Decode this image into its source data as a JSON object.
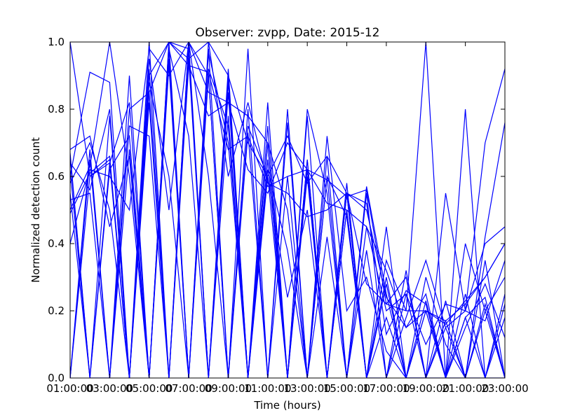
{
  "chart_data": {
    "type": "line",
    "title": "Observer: zvpp, Date: 2015-12",
    "xlabel": "Time (hours)",
    "ylabel": "Normalized detection count",
    "xlim": [
      1,
      23
    ],
    "ylim": [
      0,
      1
    ],
    "x_tick_labels": [
      "01:00:00",
      "03:00:00",
      "05:00:00",
      "07:00:00",
      "09:00:00",
      "11:00:00",
      "13:00:00",
      "15:00:00",
      "17:00:00",
      "19:00:00",
      "21:00:00",
      "23:00:00"
    ],
    "y_tick_labels": [
      "0.0",
      "0.2",
      "0.4",
      "0.6",
      "0.8",
      "1.0"
    ],
    "grid": false,
    "line_color": "#0000ff",
    "x": [
      1,
      2,
      3,
      4,
      5,
      6,
      7,
      8,
      9,
      10,
      11,
      12,
      13,
      14,
      15,
      16,
      17,
      18,
      19,
      20,
      21,
      22,
      23
    ],
    "series": [
      {
        "values": [
          1.0,
          0.6,
          0.64,
          0.0,
          0.9,
          1.0,
          0.95,
          1.0,
          0.9,
          0.7,
          0.6,
          0.72,
          0.58,
          0.66,
          0.55,
          0.5,
          0.24,
          0.15,
          0.2,
          0.17,
          0.22,
          0.3,
          0.4
        ]
      },
      {
        "values": [
          0.66,
          0.0,
          0.62,
          0.72,
          0.0,
          1.0,
          0.98,
          0.0,
          0.85,
          0.0,
          0.7,
          0.0,
          0.65,
          0.0,
          0.5,
          0.0,
          0.28,
          0.0,
          0.2,
          0.0,
          0.18,
          0.0,
          0.25
        ]
      },
      {
        "values": [
          0.0,
          0.65,
          0.0,
          0.8,
          0.85,
          0.0,
          1.0,
          0.9,
          0.0,
          0.8,
          0.0,
          0.76,
          0.0,
          0.6,
          0.0,
          0.55,
          0.0,
          0.25,
          0.0,
          0.15,
          0.0,
          0.35,
          0.0
        ]
      },
      {
        "values": [
          0.4,
          0.62,
          0.6,
          0.5,
          0.98,
          0.9,
          1.0,
          0.85,
          0.82,
          0.62,
          0.55,
          0.7,
          0.62,
          0.52,
          0.5,
          0.45,
          0.2,
          0.25,
          0.1,
          0.22,
          0.2,
          0.4,
          0.45
        ]
      },
      {
        "values": [
          0.6,
          0.91,
          0.88,
          0.0,
          0.95,
          0.5,
          1.0,
          0.6,
          0.0,
          0.75,
          0.6,
          0.0,
          0.8,
          0.55,
          0.0,
          0.57,
          0.25,
          0.0,
          0.3,
          0.1,
          0.0,
          0.2,
          0.0
        ]
      },
      {
        "values": [
          0.5,
          0.63,
          1.0,
          0.6,
          0.0,
          0.95,
          0.0,
          0.97,
          0.7,
          0.0,
          0.62,
          0.38,
          0.0,
          0.6,
          0.48,
          0.0,
          0.35,
          0.2,
          1.0,
          0.0,
          0.15,
          0.28,
          0.12
        ]
      },
      {
        "values": [
          0.68,
          0.72,
          0.45,
          0.66,
          0.0,
          1.0,
          0.0,
          0.9,
          0.0,
          0.98,
          0.0,
          0.8,
          0.0,
          0.72,
          0.2,
          0.3,
          0.08,
          0.0,
          0.0,
          0.55,
          0.2,
          0.7,
          0.92
        ]
      },
      {
        "values": [
          0.67,
          0.0,
          0.78,
          0.0,
          0.92,
          0.0,
          0.98,
          0.0,
          0.92,
          0.0,
          0.65,
          0.0,
          0.6,
          0.0,
          0.55,
          0.0,
          0.3,
          0.0,
          0.23,
          0.0,
          0.25,
          0.0,
          0.22
        ]
      },
      {
        "values": [
          0.53,
          0.55,
          0.0,
          0.9,
          0.0,
          0.98,
          0.72,
          0.0,
          0.9,
          0.0,
          0.82,
          0.0,
          0.62,
          0.0,
          0.5,
          0.0,
          0.45,
          0.0,
          0.2,
          0.0,
          0.8,
          0.0,
          0.18
        ]
      },
      {
        "values": [
          0.58,
          0.7,
          0.5,
          0.0,
          0.88,
          0.6,
          0.0,
          0.92,
          0.75,
          0.0,
          0.7,
          0.0,
          0.78,
          0.0,
          0.55,
          0.28,
          0.22,
          0.3,
          0.0,
          0.23,
          0.0,
          0.42,
          0.76
        ]
      },
      {
        "values": [
          0.62,
          0.0,
          0.0,
          0.75,
          0.72,
          0.0,
          0.95,
          0.0,
          0.78,
          0.0,
          0.75,
          0.0,
          0.65,
          0.0,
          0.58,
          0.0,
          0.18,
          0.0,
          0.0,
          0.0,
          0.0,
          0.0,
          0.0
        ]
      },
      {
        "values": [
          0.0,
          0.6,
          0.65,
          0.0,
          0.82,
          0.0,
          1.0,
          0.0,
          0.88,
          0.0,
          0.6,
          0.24,
          0.5,
          0.0,
          0.55,
          0.0,
          0.0,
          0.18,
          0.35,
          0.15,
          0.2,
          0.17,
          0.35
        ]
      },
      {
        "values": [
          0.49,
          0.61,
          0.66,
          0.0,
          0.85,
          1.0,
          0.93,
          0.91,
          0.68,
          0.72,
          0.57,
          0.6,
          0.62,
          0.59,
          0.54,
          0.56,
          0.22,
          0.2,
          0.2,
          0.16,
          0.23,
          0.3,
          0.4
        ]
      },
      {
        "values": [
          0.64,
          0.56,
          0.8,
          0.0,
          1.0,
          0.0,
          0.93,
          0.78,
          0.82,
          0.78,
          0.7,
          0.5,
          0.0,
          0.66,
          0.0,
          0.45,
          0.32,
          0.15,
          0.25,
          0.0,
          0.4,
          0.2,
          0.3
        ]
      },
      {
        "values": [
          0.55,
          0.0,
          0.64,
          0.82,
          0.0,
          0.93,
          0.0,
          1.0,
          0.6,
          0.82,
          0.58,
          0.55,
          0.48,
          0.5,
          0.55,
          0.52,
          0.13,
          0.26,
          0.22,
          0.0,
          0.18,
          0.24,
          0.0
        ]
      },
      {
        "values": [
          0.0,
          0.68,
          0.0,
          0.68,
          0.0,
          0.98,
          0.0,
          0.98,
          0.0,
          0.73,
          0.0,
          0.6,
          0.0,
          0.42,
          0.0,
          0.38,
          0.0,
          0.32,
          0.0,
          0.17,
          0.0,
          0.22,
          0.0
        ]
      }
    ]
  }
}
